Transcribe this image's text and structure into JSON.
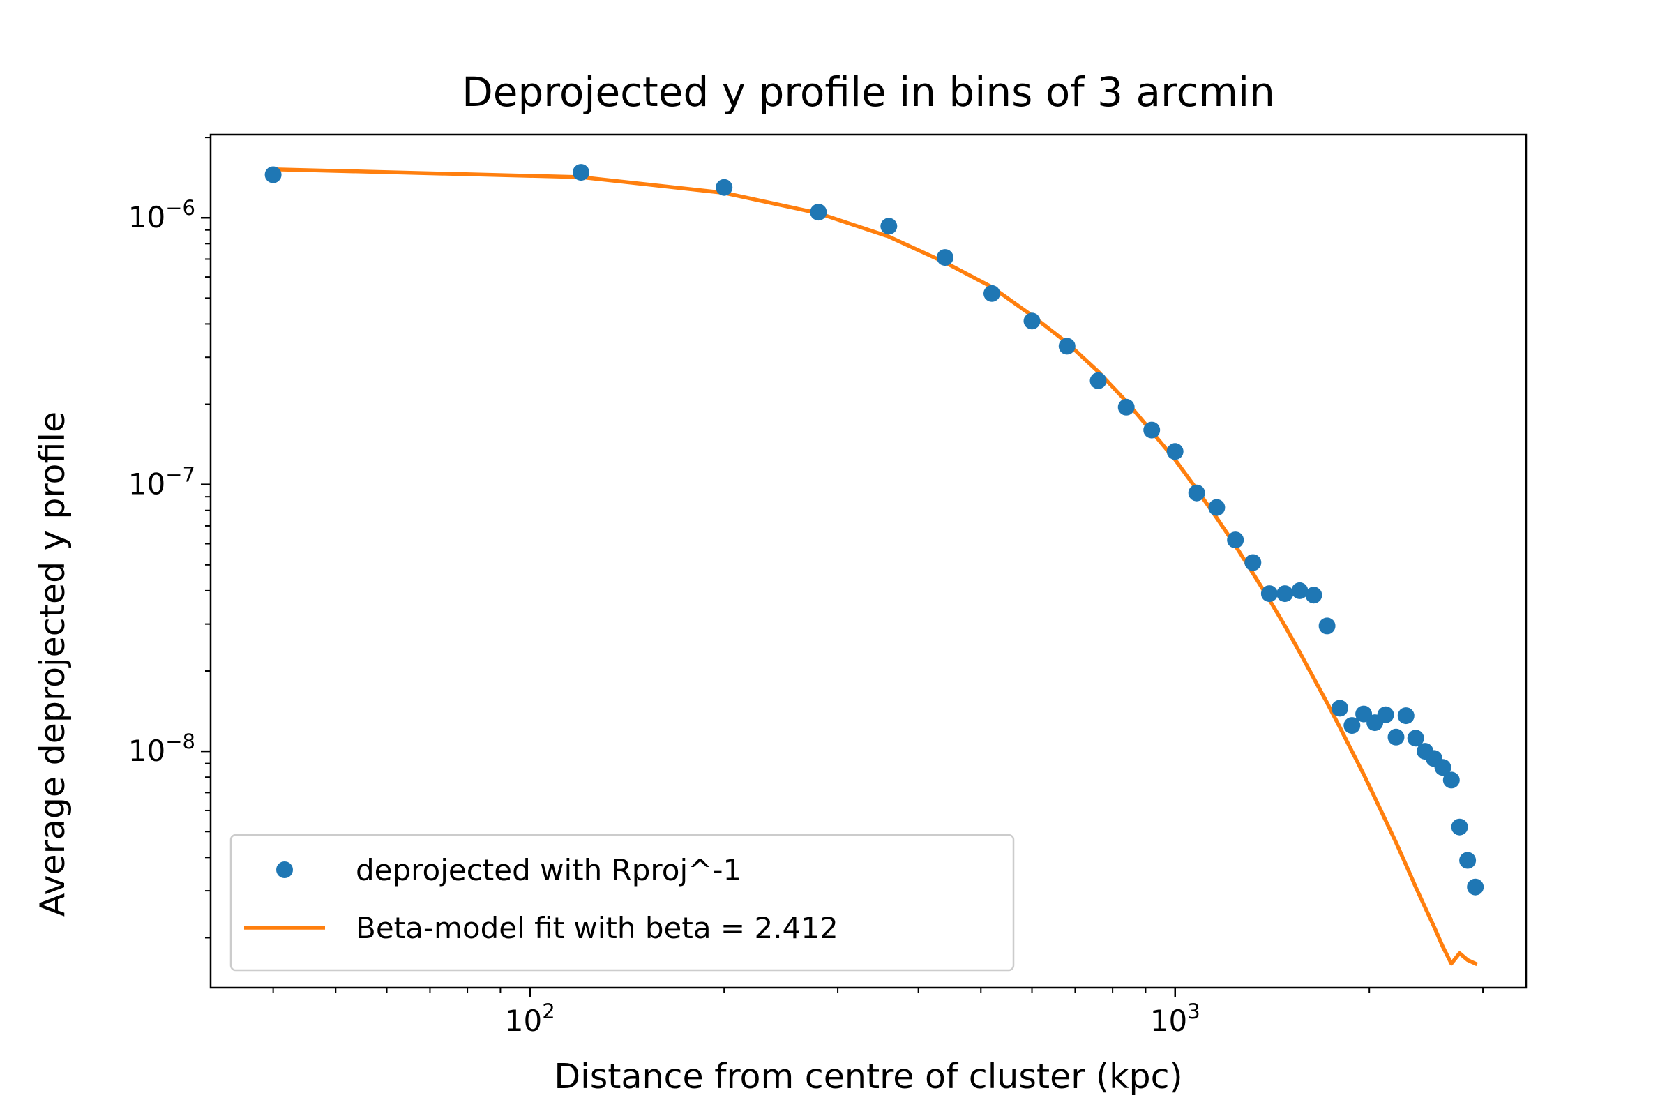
{
  "chart_data": {
    "type": "scatter",
    "title": "Deprojected y profile in bins of 3 arcmin",
    "xlabel": "Distance from centre of cluster (kpc)",
    "ylabel": "Average deprojected y profile",
    "xscale": "log",
    "yscale": "log",
    "xlim": [
      32,
      3500
    ],
    "ylim": [
      1.3e-09,
      2.05e-06
    ],
    "x_ticks": [
      {
        "value": 100,
        "base": "10",
        "exp": "2"
      },
      {
        "value": 1000,
        "base": "10",
        "exp": "3"
      }
    ],
    "y_ticks": [
      {
        "value": 1e-06,
        "base": "10",
        "exp": "−6"
      },
      {
        "value": 1e-07,
        "base": "10",
        "exp": "−7"
      },
      {
        "value": 1e-08,
        "base": "10",
        "exp": "−8"
      }
    ],
    "grid": false,
    "legend_position": "lower-left",
    "series": [
      {
        "name": "deprojected with Rproj^-1",
        "kind": "scatter",
        "color": "#1f77b4",
        "x": [
          40,
          120,
          200,
          280,
          360,
          440,
          520,
          600,
          680,
          760,
          840,
          920,
          1000,
          1080,
          1160,
          1240,
          1320,
          1400,
          1480,
          1560,
          1640,
          1720,
          1800,
          1880,
          1960,
          2040,
          2120,
          2200,
          2280,
          2360,
          2440,
          2520,
          2600,
          2680,
          2760,
          2840,
          2920
        ],
        "y": [
          1.45e-06,
          1.48e-06,
          1.3e-06,
          1.05e-06,
          9.3e-07,
          7.1e-07,
          5.2e-07,
          4.1e-07,
          3.3e-07,
          2.45e-07,
          1.95e-07,
          1.6e-07,
          1.33e-07,
          9.3e-08,
          8.2e-08,
          6.2e-08,
          5.1e-08,
          3.9e-08,
          3.9e-08,
          4e-08,
          3.85e-08,
          2.95e-08,
          1.45e-08,
          1.25e-08,
          1.38e-08,
          1.28e-08,
          1.37e-08,
          1.13e-08,
          1.36e-08,
          1.12e-08,
          1e-08,
          9.4e-09,
          8.7e-09,
          7.8e-09,
          5.2e-09,
          3.9e-09,
          3.1e-09
        ]
      },
      {
        "name": "Beta-model fit with beta = 2.412",
        "kind": "line",
        "color": "#ff7f0e",
        "x": [
          40,
          120,
          200,
          280,
          360,
          440,
          520,
          600,
          680,
          760,
          840,
          920,
          1000,
          1080,
          1160,
          1240,
          1320,
          1400,
          1480,
          1560,
          1640,
          1720,
          1800,
          1880,
          1960,
          2040,
          2120,
          2200,
          2280,
          2360,
          2440,
          2520,
          2600,
          2680,
          2760,
          2840,
          2920
        ],
        "y": [
          1.52e-06,
          1.42e-06,
          1.24e-06,
          1.04e-06,
          8.5e-07,
          6.8e-07,
          5.5e-07,
          4.3e-07,
          3.4e-07,
          2.65e-07,
          2.05e-07,
          1.58e-07,
          1.24e-07,
          9.6e-08,
          7.5e-08,
          5.9e-08,
          4.65e-08,
          3.7e-08,
          2.95e-08,
          2.35e-08,
          1.88e-08,
          1.52e-08,
          1.23e-08,
          1e-08,
          8.2e-09,
          6.7e-09,
          5.5e-09,
          4.55e-09,
          3.75e-09,
          3.1e-09,
          2.6e-09,
          2.2e-09,
          1.85e-09,
          1.6e-09,
          1.75e-09,
          1.65e-09,
          1.6e-09
        ]
      }
    ]
  }
}
